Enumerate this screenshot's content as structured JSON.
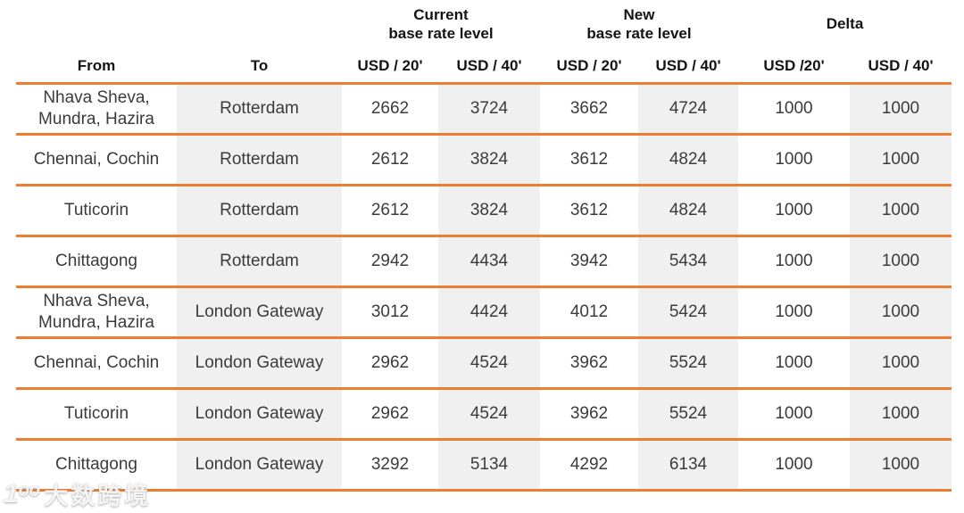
{
  "table": {
    "group_headers": {
      "current": "Current\nbase rate level",
      "new": "New\nbase rate level",
      "delta": "Delta"
    },
    "col_headers": [
      "From",
      "To",
      "USD / 20'",
      "USD / 40'",
      "USD / 20'",
      "USD / 40'",
      "USD /20'",
      "USD / 40'"
    ],
    "rows": [
      {
        "from": "Nhava Sheva,\nMundra, Hazira",
        "to": "Rotterdam",
        "values": [
          2662,
          3724,
          3662,
          4724,
          1000,
          1000
        ]
      },
      {
        "from": "Chennai, Cochin",
        "to": "Rotterdam",
        "values": [
          2612,
          3824,
          3612,
          4824,
          1000,
          1000
        ]
      },
      {
        "from": "Tuticorin",
        "to": "Rotterdam",
        "values": [
          2612,
          3824,
          3612,
          4824,
          1000,
          1000
        ]
      },
      {
        "from": "Chittagong",
        "to": "Rotterdam",
        "values": [
          2942,
          4434,
          3942,
          5434,
          1000,
          1000
        ]
      },
      {
        "from": "Nhava Sheva,\nMundra, Hazira",
        "to": "London Gateway",
        "values": [
          3012,
          4424,
          4012,
          5424,
          1000,
          1000
        ]
      },
      {
        "from": "Chennai, Cochin",
        "to": "London Gateway",
        "values": [
          2962,
          4524,
          3962,
          5524,
          1000,
          1000
        ]
      },
      {
        "from": "Tuticorin",
        "to": "London Gateway",
        "values": [
          2962,
          4524,
          3962,
          5524,
          1000,
          1000
        ]
      },
      {
        "from": "Chittagong",
        "to": "London Gateway",
        "values": [
          3292,
          5134,
          4292,
          6134,
          1000,
          1000
        ]
      }
    ]
  },
  "watermark": {
    "logo": "1ᵒᵒ",
    "text": "大数跨境"
  },
  "colors": {
    "accent_orange": "#ED7D31",
    "stripe_gray": "#F0F0F0",
    "body_text": "#3b3b3b",
    "header_text": "#141414"
  }
}
